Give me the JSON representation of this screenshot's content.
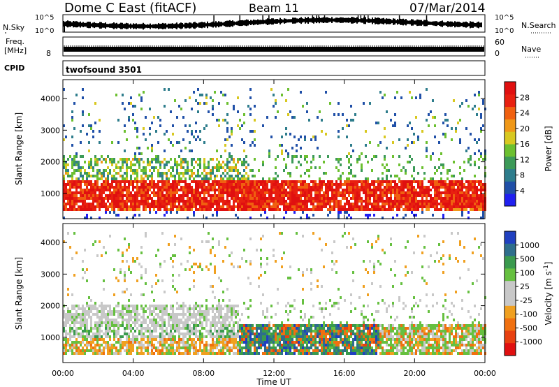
{
  "header": {
    "station": "Dome C East (fitACF)",
    "beam": "Beam 11",
    "date": "07/Mar/2014"
  },
  "strips": {
    "nsky_label": "N.Sky",
    "nsky_ticks": [
      "10^5",
      "10^0"
    ],
    "nsearch_label": "N.Search",
    "freq_label": "Freq.",
    "freq_unit": "[MHz]",
    "freq_ticks": [
      "8"
    ],
    "nave_label": "Nave",
    "nave_ticks": [
      "60",
      "0"
    ],
    "cpid_label": "CPID",
    "cpid_value": "twofsound 3501"
  },
  "chart_data": [
    {
      "type": "heatmap",
      "name": "power-panel",
      "xlabel": "",
      "ylabel": "Slant Range [km]",
      "xlim": [
        0,
        24
      ],
      "ylim": [
        200,
        4600
      ],
      "yticks": [
        "1000",
        "2000",
        "3000",
        "4000"
      ],
      "colorbar": {
        "label": "Power [dB]",
        "ticks": [
          "4",
          "8",
          "12",
          "16",
          "20",
          "24",
          "28"
        ],
        "colors": [
          "#2020f0",
          "#2050a8",
          "#2e7d8c",
          "#3c9a58",
          "#6cc030",
          "#d8c820",
          "#f09818",
          "#f06010",
          "#e82010",
          "#e01010"
        ]
      },
      "bands": [
        {
          "range_km": [
            400,
            1400
          ],
          "value_db": 28,
          "hours": [
            0,
            24
          ]
        },
        {
          "range_km": [
            1500,
            2200
          ],
          "value_db": 16,
          "hours": [
            0,
            10
          ]
        },
        {
          "range_km": [
            2500,
            4200
          ],
          "value_db": 8,
          "hours": [
            0,
            24
          ]
        }
      ]
    },
    {
      "type": "heatmap",
      "name": "velocity-panel",
      "xlabel": "Time UT",
      "ylabel": "Slant Range [km]",
      "xlim": [
        0,
        24
      ],
      "ylim": [
        200,
        4600
      ],
      "xticks": [
        "00:00",
        "04:00",
        "08:00",
        "12:00",
        "16:00",
        "20:00",
        "00:00"
      ],
      "yticks": [
        "1000",
        "2000",
        "3000",
        "4000"
      ],
      "colorbar": {
        "label": "Velocity [m s^-1]",
        "ticks": [
          "1000",
          "500",
          "100",
          "25",
          "-25",
          "-100",
          "-500",
          "-1000"
        ],
        "colors": [
          "#2040c0",
          "#2e6e8c",
          "#3a9a4e",
          "#66c040",
          "#c8c8c8",
          "#c8c8c8",
          "#f0a020",
          "#f07010",
          "#e84010",
          "#e01010"
        ]
      },
      "bands": [
        {
          "range_km": [
            500,
            1000
          ],
          "value_ms": -300,
          "hours": [
            0,
            10
          ]
        },
        {
          "range_km": [
            500,
            1500
          ],
          "value_ms": 300,
          "hours": [
            10,
            18
          ]
        },
        {
          "range_km": [
            1400,
            2000
          ],
          "value_ms": 0,
          "hours": [
            0,
            10
          ]
        }
      ]
    }
  ]
}
